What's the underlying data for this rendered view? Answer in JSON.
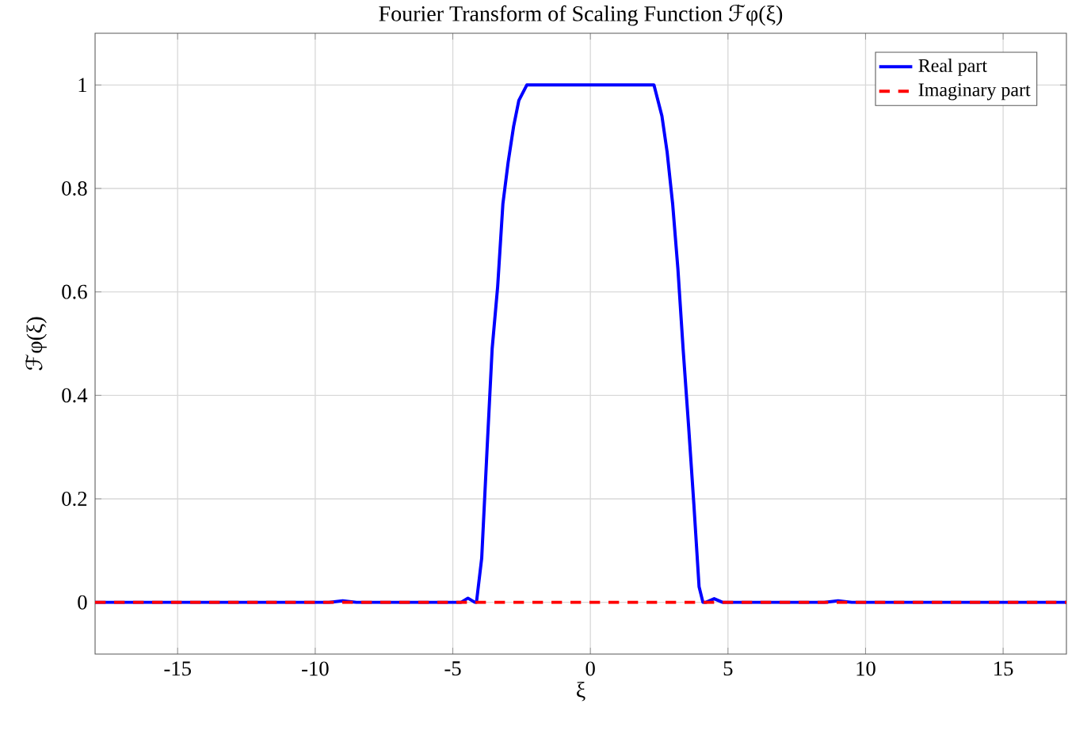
{
  "chart_data": {
    "type": "line",
    "title": "Fourier Transform of Scaling Function ℱφ(ξ)",
    "xlabel": "ξ",
    "ylabel": "ℱφ(ξ)",
    "xlim": [
      -18,
      17.3
    ],
    "ylim": [
      -0.1,
      1.1
    ],
    "xticks": [
      -15,
      -10,
      -5,
      0,
      5,
      10,
      15
    ],
    "yticks": [
      0,
      0.2,
      0.4,
      0.6,
      0.8,
      1
    ],
    "grid": true,
    "legend": "top right",
    "series": [
      {
        "name": "Real part",
        "color": "#0000ff",
        "line_style": "solid",
        "x": [
          -18,
          -9.5,
          -9,
          -8.5,
          -4.7,
          -4.45,
          -4.2,
          -4.14,
          -3.95,
          -3.76,
          -3.57,
          -3.37,
          -3.18,
          -2.99,
          -2.79,
          -2.6,
          -2.31,
          2.31,
          2.6,
          2.79,
          2.99,
          3.18,
          3.37,
          3.57,
          3.76,
          3.95,
          4.09,
          4.2,
          4.5,
          4.8,
          8.5,
          9,
          9.5,
          17.3
        ],
        "values": [
          0,
          0,
          0.003,
          0,
          0,
          0.008,
          0,
          0,
          0.085,
          0.29,
          0.49,
          0.61,
          0.77,
          0.85,
          0.92,
          0.97,
          1,
          1,
          0.94,
          0.87,
          0.77,
          0.645,
          0.49,
          0.34,
          0.19,
          0.03,
          0,
          0,
          0.007,
          0,
          0,
          0.003,
          0,
          0
        ]
      },
      {
        "name": "Imaginary part",
        "color": "#ff0000",
        "line_style": "dashed",
        "x": [
          -18,
          17.3
        ],
        "values": [
          0,
          0
        ]
      }
    ]
  }
}
